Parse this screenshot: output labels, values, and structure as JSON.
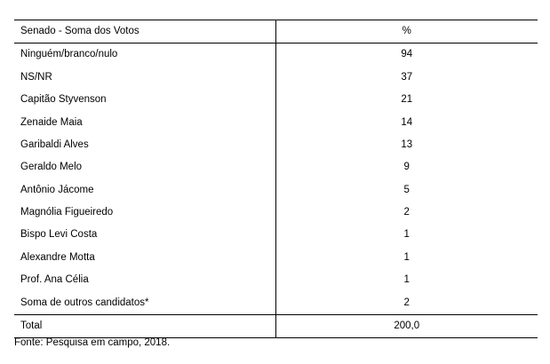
{
  "table": {
    "header": {
      "name": "Senado - Soma dos Votos",
      "percent": "%"
    },
    "rows": [
      {
        "name": "Ninguém/branco/nulo",
        "percent": "94"
      },
      {
        "name": "NS/NR",
        "percent": "37"
      },
      {
        "name": "Capitão Styvenson",
        "percent": "21"
      },
      {
        "name": "Zenaide Maia",
        "percent": "14"
      },
      {
        "name": "Garibaldi Alves",
        "percent": "13"
      },
      {
        "name": "Geraldo Melo",
        "percent": "9"
      },
      {
        "name": "Antônio Jácome",
        "percent": "5"
      },
      {
        "name": "Magnólia Figueiredo",
        "percent": "2"
      },
      {
        "name": "Bispo Levi Costa",
        "percent": "1"
      },
      {
        "name": "Alexandre Motta",
        "percent": "1"
      },
      {
        "name": "Prof. Ana Célia",
        "percent": "1"
      },
      {
        "name": "Soma de outros candidatos*",
        "percent": "2"
      }
    ],
    "total": {
      "name": "Total",
      "percent": "200,0"
    }
  },
  "source": "Fonte: Pesquisa em campo, 2018."
}
